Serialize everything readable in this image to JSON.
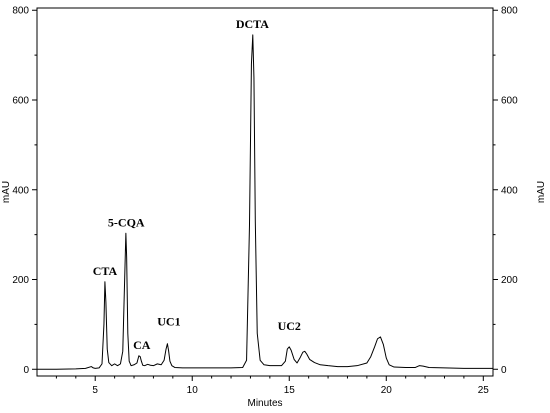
{
  "chart_data": {
    "type": "line",
    "xlabel": "Minutes",
    "ylabel_left": "mAU",
    "ylabel_right": "mAU",
    "xlim": [
      2.0,
      25.5
    ],
    "ylim": [
      -15,
      805
    ],
    "x_ticks": [
      5,
      10,
      15,
      20,
      25
    ],
    "y_ticks": [
      0,
      200,
      400,
      600,
      800
    ],
    "grid": false,
    "line_color": "#000000",
    "series": [
      {
        "x": [
          2.0,
          3.0,
          4.0,
          4.5,
          4.8,
          4.9,
          5.0,
          5.2,
          5.35,
          5.45,
          5.5,
          5.55,
          5.62,
          5.7,
          5.85,
          6.0,
          6.15,
          6.3,
          6.42,
          6.52,
          6.58,
          6.62,
          6.68,
          6.75,
          6.85,
          7.0,
          7.15,
          7.25,
          7.32,
          7.38,
          7.45,
          7.55,
          7.7,
          7.85,
          8.0,
          8.2,
          8.4,
          8.55,
          8.65,
          8.72,
          8.78,
          8.85,
          8.95,
          9.1,
          9.5,
          10.0,
          11.0,
          12.0,
          12.6,
          12.8,
          12.95,
          13.05,
          13.12,
          13.18,
          13.25,
          13.35,
          13.5,
          13.7,
          14.0,
          14.3,
          14.6,
          14.8,
          14.9,
          15.0,
          15.1,
          15.25,
          15.4,
          15.55,
          15.7,
          15.8,
          15.9,
          16.05,
          16.3,
          16.6,
          17.0,
          17.5,
          18.0,
          18.5,
          19.0,
          19.2,
          19.4,
          19.55,
          19.7,
          19.85,
          20.0,
          20.15,
          20.4,
          21.0,
          21.5,
          21.7,
          21.9,
          22.2,
          23.0,
          24.0,
          25.0,
          25.5
        ],
        "values": [
          0,
          0,
          1,
          2,
          6,
          3,
          2,
          3,
          12,
          100,
          195,
          150,
          45,
          15,
          8,
          12,
          8,
          12,
          40,
          205,
          303,
          250,
          80,
          18,
          8,
          10,
          14,
          30,
          28,
          18,
          9,
          8,
          11,
          9,
          8,
          12,
          10,
          20,
          45,
          57,
          42,
          18,
          8,
          4,
          3,
          3,
          3,
          3,
          4,
          20,
          320,
          680,
          745,
          650,
          330,
          80,
          20,
          10,
          8,
          8,
          8,
          18,
          45,
          50,
          42,
          22,
          14,
          25,
          38,
          40,
          34,
          22,
          15,
          10,
          8,
          6,
          6,
          8,
          14,
          28,
          50,
          68,
          72,
          55,
          25,
          10,
          5,
          4,
          4,
          8,
          7,
          4,
          3,
          2,
          2,
          2
        ]
      }
    ],
    "annotations": [
      {
        "text": "CTA",
        "x": 5.5,
        "y": 210
      },
      {
        "text": "5-CQA",
        "x": 6.6,
        "y": 318
      },
      {
        "text": "CA",
        "x": 7.4,
        "y": 45
      },
      {
        "text": "UC1",
        "x": 8.8,
        "y": 98
      },
      {
        "text": "DCTA",
        "x": 13.1,
        "y": 760
      },
      {
        "text": "UC2",
        "x": 15.0,
        "y": 88
      }
    ]
  }
}
